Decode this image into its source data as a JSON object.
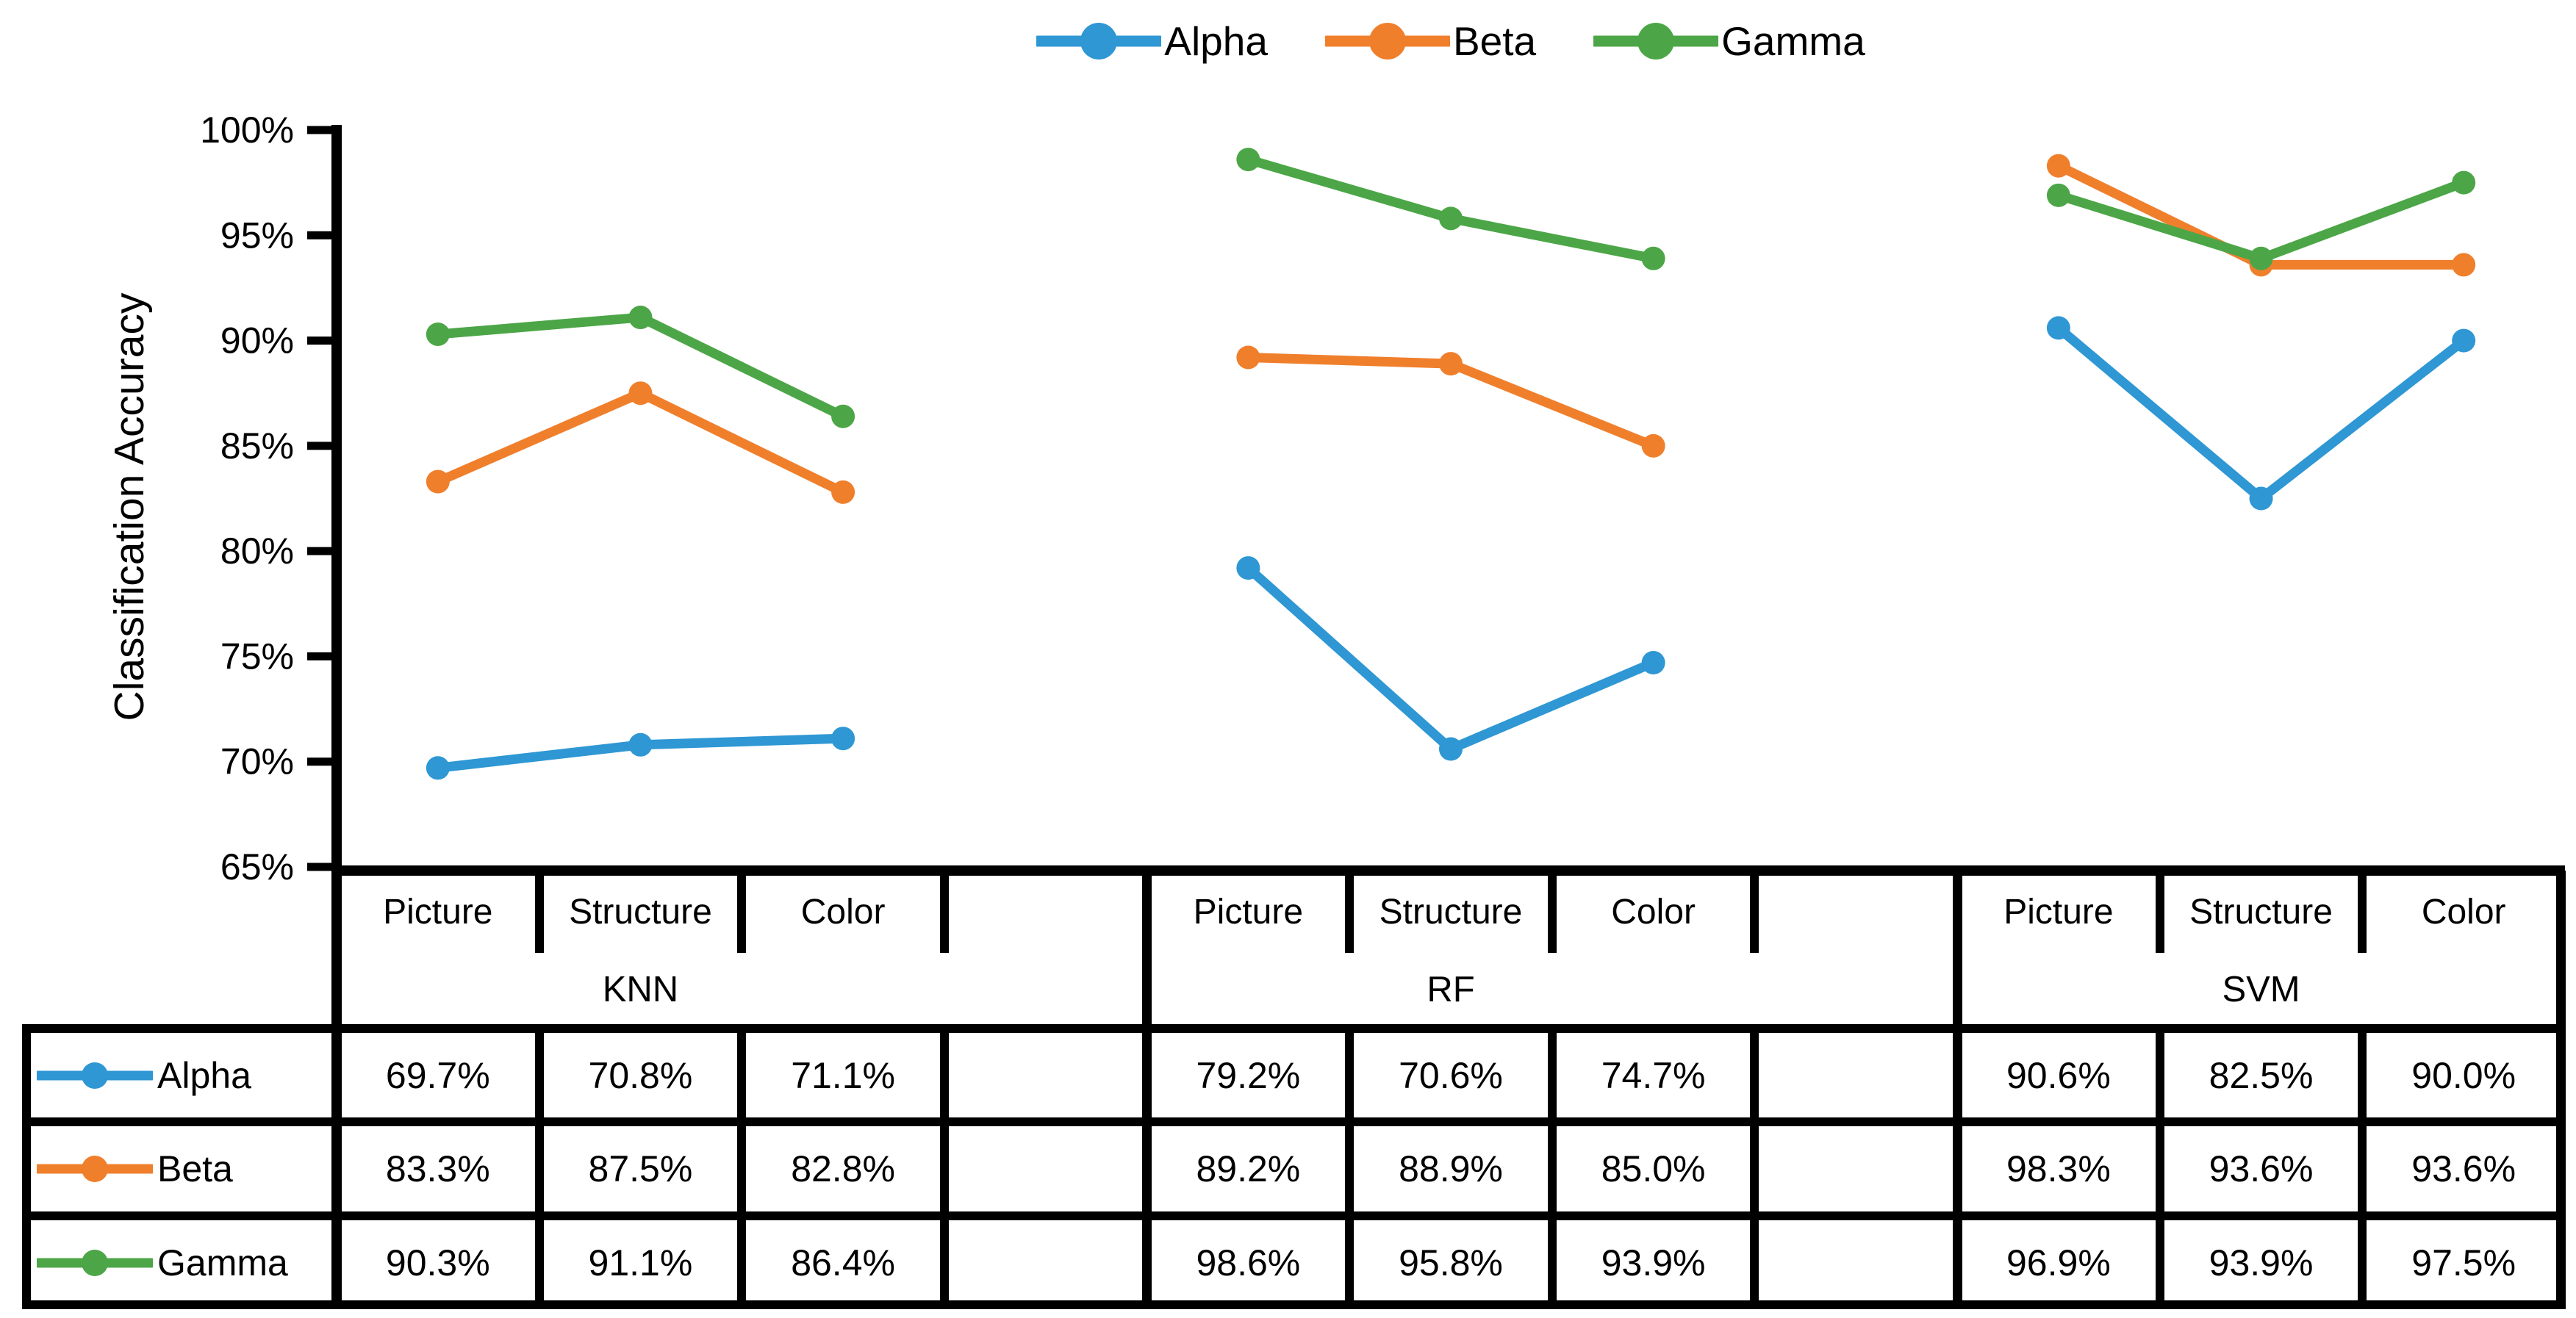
{
  "chart_data": {
    "type": "line",
    "title": "",
    "xlabel": "",
    "ylabel": "Classification Accuracy",
    "ylim": [
      65,
      100
    ],
    "ytick_step": 5,
    "ytick_labels": [
      "65%",
      "70%",
      "75%",
      "80%",
      "85%",
      "90%",
      "95%",
      "100%"
    ],
    "grid": false,
    "legend_position": "top",
    "data_table": true,
    "groups": [
      "KNN",
      "RF",
      "SVM"
    ],
    "categories": [
      "Picture",
      "Structure",
      "Color"
    ],
    "series": [
      {
        "name": "Alpha",
        "color": "#2E97D4",
        "marker": "circle",
        "values": {
          "KNN": [
            69.7,
            70.8,
            71.1
          ],
          "RF": [
            79.2,
            70.6,
            74.7
          ],
          "SVM": [
            90.6,
            82.5,
            90.0
          ]
        }
      },
      {
        "name": "Beta",
        "color": "#F07F2C",
        "marker": "circle",
        "values": {
          "KNN": [
            83.3,
            87.5,
            82.8
          ],
          "RF": [
            89.2,
            88.9,
            85.0
          ],
          "SVM": [
            98.3,
            93.6,
            93.6
          ]
        }
      },
      {
        "name": "Gamma",
        "color": "#4CA647",
        "marker": "circle",
        "values": {
          "KNN": [
            90.3,
            91.1,
            86.4
          ],
          "RF": [
            98.6,
            95.8,
            93.9
          ],
          "SVM": [
            96.9,
            93.9,
            97.5
          ]
        }
      }
    ],
    "value_suffix": "%",
    "value_decimals": 1
  }
}
